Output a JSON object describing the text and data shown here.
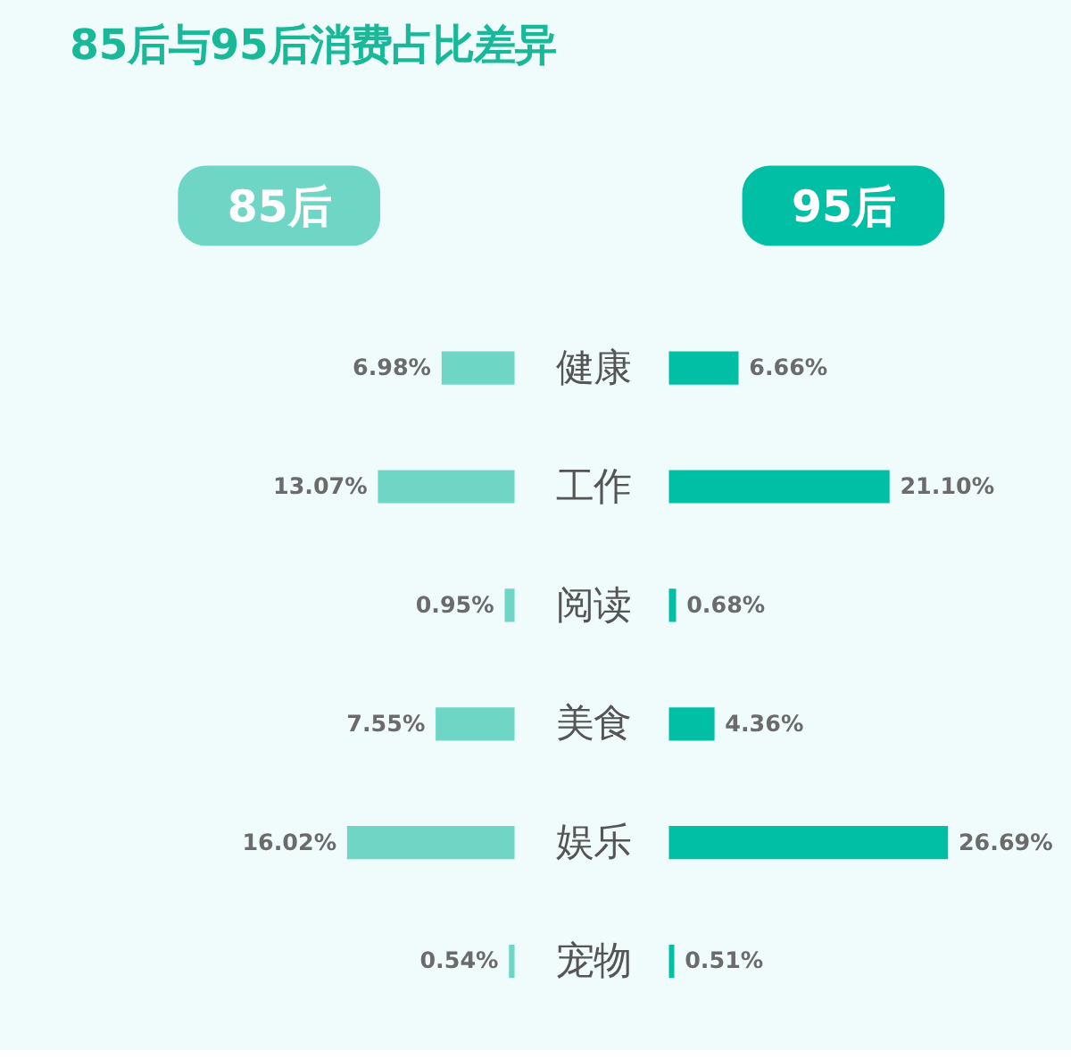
{
  "chart_data": [
    {
      "type": "bar",
      "title": "85后与95后消费占比差异",
      "orientation": "horizontal",
      "categories": [
        "健康",
        "工作",
        "阅读",
        "美食",
        "娱乐",
        "宠物"
      ],
      "series": [
        {
          "name": "85后",
          "color": "#6fd6c6",
          "values": [
            6.98,
            13.07,
            0.95,
            7.55,
            16.02,
            0.54
          ],
          "value_labels": [
            "6.98%",
            "13.07%",
            "0.95%",
            "7.55%",
            "16.02%",
            "0.54%"
          ]
        }
      ],
      "legend": "top",
      "tick_labels": false
    },
    {
      "type": "bar",
      "orientation": "horizontal",
      "categories": [
        "健康",
        "工作",
        "阅读",
        "美食",
        "娱乐",
        "宠物"
      ],
      "series": [
        {
          "name": "95后",
          "color": "#00bfa5",
          "values": [
            6.66,
            21.1,
            0.68,
            4.36,
            26.69,
            0.51
          ],
          "value_labels": [
            "6.66%",
            "21.10%",
            "0.68%",
            "4.36%",
            "26.69%",
            "0.51%"
          ]
        }
      ],
      "legend": "top",
      "tick_labels": "y"
    }
  ]
}
